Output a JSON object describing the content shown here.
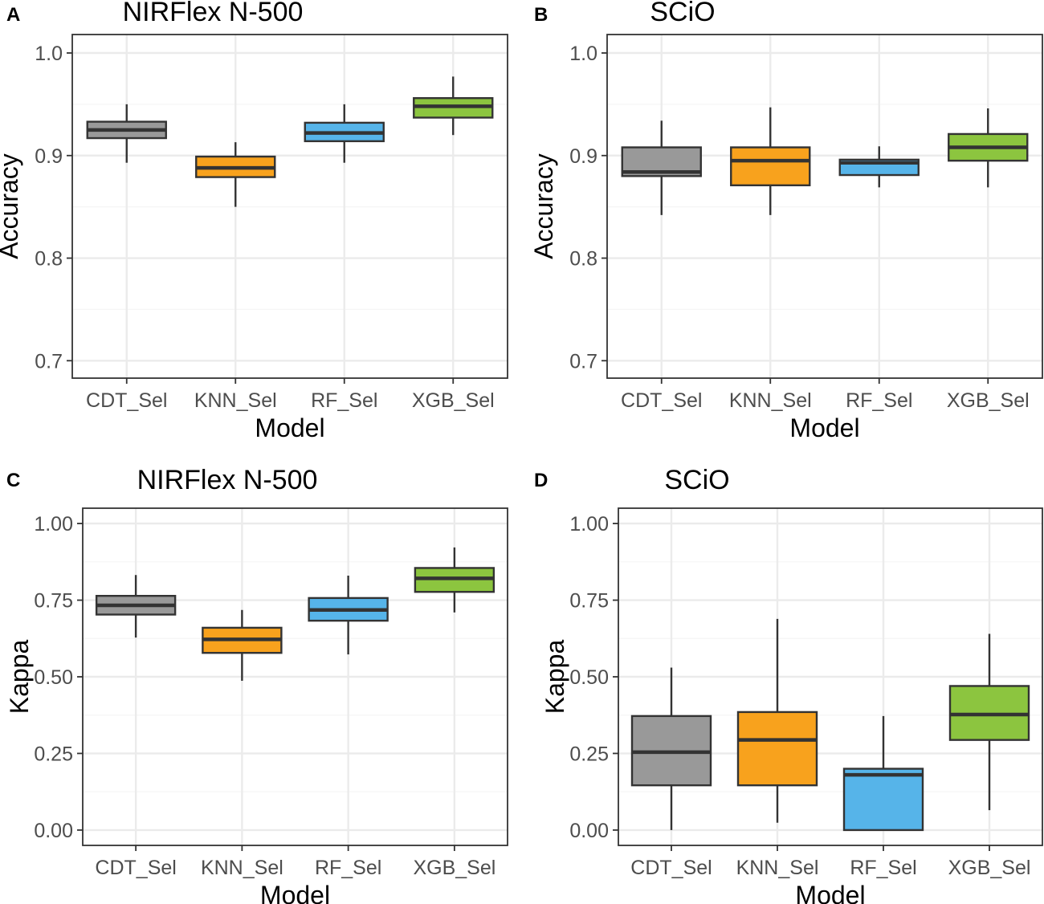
{
  "palette": {
    "CDT_Sel": "#999999",
    "KNN_Sel": "#f8a21d",
    "RF_Sel": "#56b4e9",
    "XGB_Sel": "#8cc53f",
    "outline": "#333333",
    "grid_major": "#ebebeb",
    "grid_minor": "#f5f5f5",
    "panel_border": "#333333"
  },
  "chart_data": [
    {
      "panel": "A",
      "type": "boxplot",
      "title": "NIRFlex N-500",
      "xlabel": "Model",
      "ylabel": "Accuracy",
      "ylim": [
        0.683,
        1.018
      ],
      "y_ticks": [
        0.7,
        0.8,
        0.9,
        1.0
      ],
      "y_tick_labels": [
        "0.7",
        "0.8",
        "0.9",
        "1.0"
      ],
      "categories": [
        "CDT_Sel",
        "KNN_Sel",
        "RF_Sel",
        "XGB_Sel"
      ],
      "boxes": [
        {
          "min": 0.893,
          "q1": 0.917,
          "median": 0.925,
          "q3": 0.933,
          "max": 0.95
        },
        {
          "min": 0.85,
          "q1": 0.879,
          "median": 0.888,
          "q3": 0.899,
          "max": 0.913
        },
        {
          "min": 0.893,
          "q1": 0.914,
          "median": 0.922,
          "q3": 0.932,
          "max": 0.95
        },
        {
          "min": 0.92,
          "q1": 0.937,
          "median": 0.948,
          "q3": 0.956,
          "max": 0.977
        }
      ]
    },
    {
      "panel": "B",
      "type": "boxplot",
      "title": "SCiO",
      "xlabel": "Model",
      "ylabel": "Accuracy",
      "ylim": [
        0.683,
        1.018
      ],
      "y_ticks": [
        0.7,
        0.8,
        0.9,
        1.0
      ],
      "y_tick_labels": [
        "0.7",
        "0.8",
        "0.9",
        "1.0"
      ],
      "categories": [
        "CDT_Sel",
        "KNN_Sel",
        "RF_Sel",
        "XGB_Sel"
      ],
      "boxes": [
        {
          "min": 0.842,
          "q1": 0.88,
          "median": 0.884,
          "q3": 0.908,
          "max": 0.934
        },
        {
          "min": 0.842,
          "q1": 0.871,
          "median": 0.895,
          "q3": 0.908,
          "max": 0.947
        },
        {
          "min": 0.869,
          "q1": 0.881,
          "median": 0.893,
          "q3": 0.896,
          "max": 0.909
        },
        {
          "min": 0.869,
          "q1": 0.895,
          "median": 0.908,
          "q3": 0.921,
          "max": 0.946
        }
      ]
    },
    {
      "panel": "C",
      "type": "boxplot",
      "title": "NIRFlex N-500",
      "xlabel": "Model",
      "ylabel": "Kappa",
      "ylim": [
        -0.05,
        1.05
      ],
      "y_ticks": [
        0.0,
        0.25,
        0.5,
        0.75,
        1.0
      ],
      "y_tick_labels": [
        "0.00",
        "0.25",
        "0.50",
        "0.75",
        "1.00"
      ],
      "categories": [
        "CDT_Sel",
        "KNN_Sel",
        "RF_Sel",
        "XGB_Sel"
      ],
      "boxes": [
        {
          "min": 0.628,
          "q1": 0.703,
          "median": 0.733,
          "q3": 0.764,
          "max": 0.832
        },
        {
          "min": 0.487,
          "q1": 0.578,
          "median": 0.622,
          "q3": 0.66,
          "max": 0.718
        },
        {
          "min": 0.573,
          "q1": 0.683,
          "median": 0.718,
          "q3": 0.757,
          "max": 0.83
        },
        {
          "min": 0.71,
          "q1": 0.777,
          "median": 0.821,
          "q3": 0.855,
          "max": 0.922
        }
      ]
    },
    {
      "panel": "D",
      "type": "boxplot",
      "title": "SCiO",
      "xlabel": "Model",
      "ylabel": "Kappa",
      "ylim": [
        -0.05,
        1.05
      ],
      "y_ticks": [
        0.0,
        0.25,
        0.5,
        0.75,
        1.0
      ],
      "y_tick_labels": [
        "0.00",
        "0.25",
        "0.50",
        "0.75",
        "1.00"
      ],
      "categories": [
        "CDT_Sel",
        "KNN_Sel",
        "RF_Sel",
        "XGB_Sel"
      ],
      "boxes": [
        {
          "min": 0.0,
          "q1": 0.146,
          "median": 0.254,
          "q3": 0.372,
          "max": 0.53
        },
        {
          "min": 0.024,
          "q1": 0.146,
          "median": 0.294,
          "q3": 0.385,
          "max": 0.689
        },
        {
          "min": 0.0,
          "q1": 0.0,
          "median": 0.18,
          "q3": 0.2,
          "max": 0.372
        },
        {
          "min": 0.065,
          "q1": 0.294,
          "median": 0.377,
          "q3": 0.47,
          "max": 0.64
        }
      ]
    }
  ]
}
